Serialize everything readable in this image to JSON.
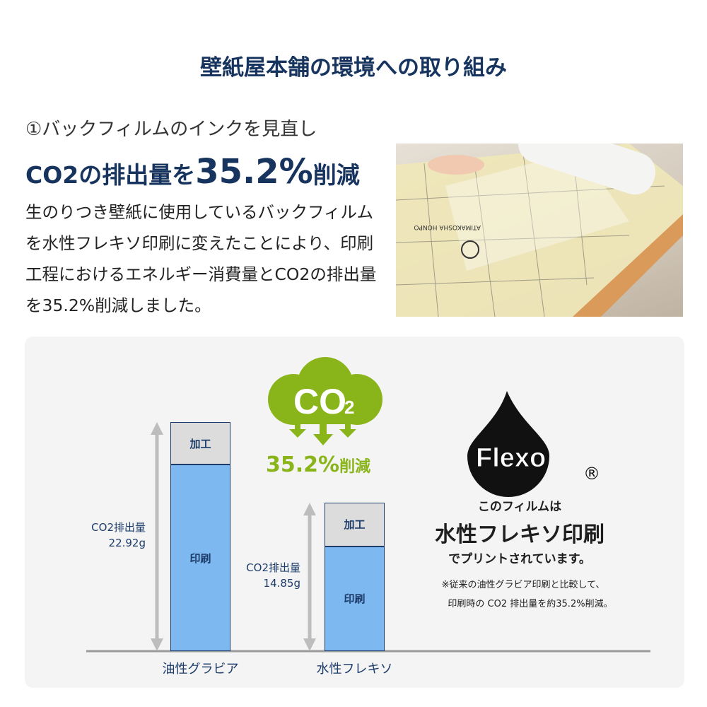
{
  "title": "壁紙屋本舗の環境への取り組み",
  "section": {
    "heading": "①バックフィルムのインクを見直し",
    "headline_prefix": "CO2の排出量を",
    "headline_value": "35.2%",
    "headline_suffix": "削減",
    "body": "生のりつき壁紙に使用しているバックフィルムを水性フレキソ印刷に変えたことにより、印刷工程におけるエネルギー消費量とCO2の排出量を35.2%削減しました。"
  },
  "photo": {
    "film_print": "ATIMAKOSHA HONPO"
  },
  "colors": {
    "navy": "#17345f",
    "green": "#8ab51a",
    "bar_print": "#7db9f0",
    "bar_process": "#dcdcdc"
  },
  "badge": {
    "cloud_text": "CO",
    "cloud_sub": "2",
    "reduction_value": "35.2%",
    "reduction_suffix": "削減"
  },
  "chart_data": {
    "type": "bar",
    "stacked": true,
    "categories": [
      "油性グラビア",
      "水性フレキソ"
    ],
    "series": [
      {
        "name": "印刷",
        "values": [
          18.67,
          10.5
        ]
      },
      {
        "name": "加工",
        "values": [
          4.25,
          4.35
        ]
      }
    ],
    "totals": [
      {
        "label": "CO2排出量",
        "value": "22.92g"
      },
      {
        "label": "CO2排出量",
        "value": "14.85g"
      }
    ],
    "ylim": [
      0,
      22.92
    ],
    "grid": false
  },
  "flexo": {
    "logo": "Flexo",
    "registered": "®",
    "line1": "このフィルムは",
    "line2": "水性フレキソ印刷",
    "line3": "でプリントされています。",
    "note1": "※従来の油性グラビア印刷と比較して、",
    "note2": "印刷時の CO2 排出量を約35.2%削減。"
  }
}
